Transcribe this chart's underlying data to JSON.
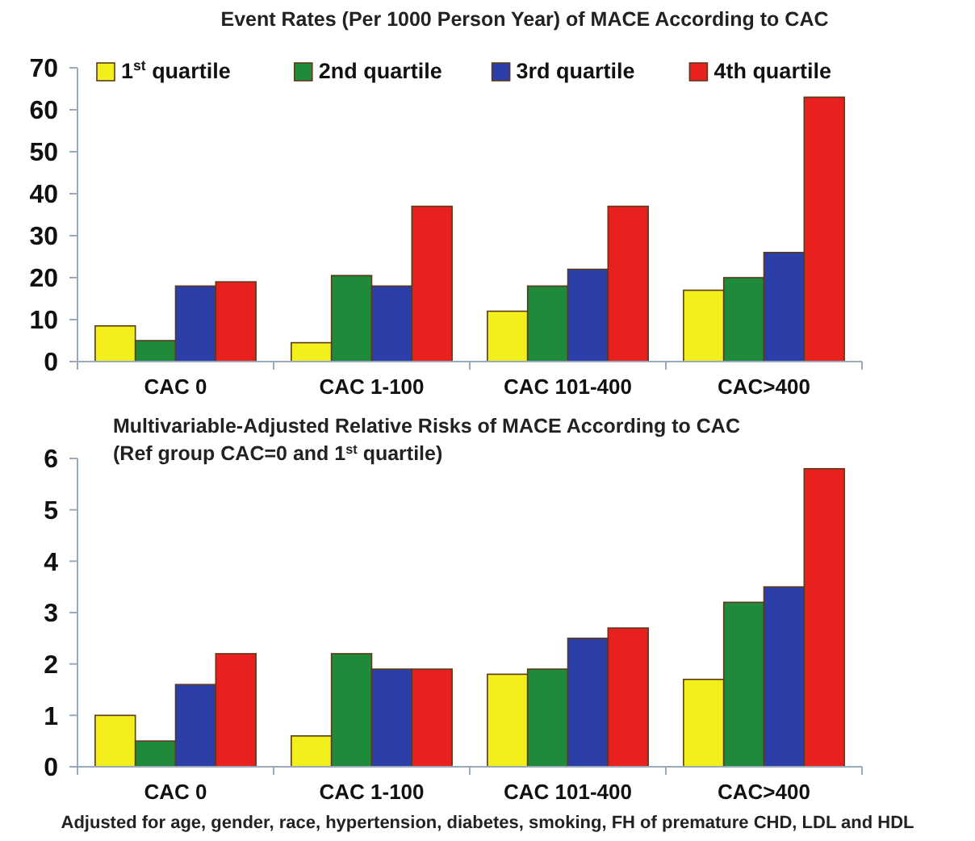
{
  "chart_data": [
    {
      "type": "bar",
      "title": "Event Rates (Per 1000 Person Year) of MACE According to CAC",
      "categories": [
        "CAC 0",
        "CAC 1-100",
        "CAC 101-400",
        "CAC>400"
      ],
      "series": [
        {
          "name": "1$^{st}$ quartile",
          "color": "#f2ef1c",
          "values": [
            8.5,
            4.5,
            12,
            17
          ]
        },
        {
          "name": "2nd quartile",
          "color": "#1e8a3a",
          "values": [
            5,
            20.5,
            18,
            20
          ]
        },
        {
          "name": "3rd quartile",
          "color": "#2c3fa8",
          "values": [
            18,
            18,
            22,
            26
          ]
        },
        {
          "name": "4th quartile",
          "color": "#e8201e",
          "values": [
            19,
            37,
            37,
            63
          ]
        }
      ],
      "ylim": [
        0,
        70
      ],
      "yticks": [
        0,
        10,
        20,
        30,
        40,
        50,
        60,
        70
      ],
      "legend": "top",
      "grid": false
    },
    {
      "type": "bar",
      "title": "Multivariable-Adjusted  Relative Risks of MACE According to CAC",
      "subtitle": "(Ref group CAC=0 and 1$^{st}$ quartile)",
      "categories": [
        "CAC 0",
        "CAC 1-100",
        "CAC 101-400",
        "CAC>400"
      ],
      "series": [
        {
          "color": "#f2ef1c",
          "values": [
            1.0,
            0.6,
            1.8,
            1.7
          ]
        },
        {
          "color": "#1e8a3a",
          "values": [
            0.5,
            2.2,
            1.9,
            3.2
          ]
        },
        {
          "color": "#2c3fa8",
          "values": [
            1.6,
            1.9,
            2.5,
            3.5
          ]
        },
        {
          "color": "#e8201e",
          "values": [
            2.2,
            1.9,
            2.7,
            5.8
          ]
        }
      ],
      "ylim": [
        0,
        6
      ],
      "yticks": [
        0,
        1,
        2,
        3,
        4,
        5,
        6
      ],
      "legend": false,
      "grid": false,
      "annotations": [
        "Adjusted for age, gender, race, hypertension, diabetes, smoking, FH of premature CHD, LDL and HDL"
      ]
    }
  ]
}
